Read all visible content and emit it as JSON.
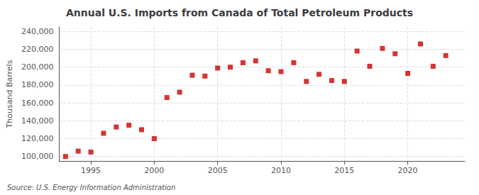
{
  "chart_data": {
    "type": "scatter",
    "title": "Annual U.S. Imports from Canada of Total Petroleum Products",
    "ylabel": "Thousand Barrels",
    "annotations": [
      "Source: U.S. Energy Information Administration"
    ],
    "x": [
      1993,
      1994,
      1995,
      1996,
      1997,
      1998,
      1999,
      2000,
      2001,
      2002,
      2003,
      2004,
      2005,
      2006,
      2007,
      2008,
      2009,
      2010,
      2011,
      2012,
      2013,
      2014,
      2015,
      2016,
      2017,
      2018,
      2019,
      2020,
      2021,
      2022,
      2023
    ],
    "values": [
      100000,
      106000,
      105000,
      126000,
      133000,
      135000,
      130000,
      120000,
      166000,
      172000,
      191000,
      190000,
      199000,
      200000,
      205000,
      207000,
      196000,
      195000,
      205000,
      184000,
      192000,
      185000,
      184000,
      218000,
      201000,
      221000,
      215000,
      193000,
      226000,
      201000,
      213000
    ],
    "color": "#cc0000",
    "marker": "square",
    "xlim": [
      1992.5,
      2024.5
    ],
    "xticks": [
      1995,
      2000,
      2005,
      2010,
      2015,
      2020
    ],
    "ylim": [
      95000,
      245000
    ],
    "yticks": [
      {
        "value": 100000,
        "label": "100,000"
      },
      {
        "value": 120000,
        "label": "120,000"
      },
      {
        "value": 140000,
        "label": "140,000"
      },
      {
        "value": 160000,
        "label": "160,000"
      },
      {
        "value": 180000,
        "label": "180,000"
      },
      {
        "value": 200000,
        "label": "200,000"
      },
      {
        "value": 220000,
        "label": "220,000"
      },
      {
        "value": 240000,
        "label": "240,000"
      }
    ],
    "grid": true
  }
}
